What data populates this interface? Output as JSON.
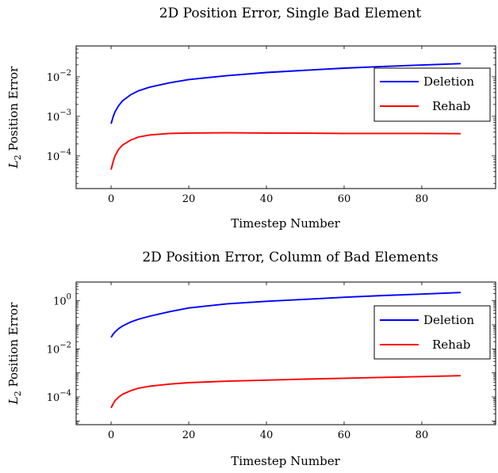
{
  "chart_data": [
    {
      "type": "line",
      "title": "2D Position Error, Single Bad Element",
      "xlabel": "Timestep Number",
      "ylabel": "L2 Position Error",
      "ylabel_subscript": "2",
      "xlim": [
        -9,
        99
      ],
      "ylim": [
        1.5e-05,
        0.06
      ],
      "yscale": "log",
      "legend": "right",
      "xticks": [
        0,
        20,
        40,
        60,
        80
      ],
      "xtick_labels": [
        "0",
        "20",
        "40",
        "60",
        "80"
      ],
      "yticks": [
        0.0001,
        0.001,
        0.01
      ],
      "ytick_labels": [
        {
          "base": "10",
          "exp": "−4"
        },
        {
          "base": "10",
          "exp": "−3"
        },
        {
          "base": "10",
          "exp": "−2"
        }
      ],
      "series": [
        {
          "name": "Deletion",
          "color": "#0000ff",
          "x": [
            0,
            0.5,
            1,
            2,
            3,
            5,
            7,
            10,
            15,
            20,
            30,
            40,
            50,
            60,
            70,
            80,
            90
          ],
          "y": [
            0.00065,
            0.00095,
            0.0013,
            0.0019,
            0.0025,
            0.0035,
            0.0044,
            0.0055,
            0.007,
            0.0085,
            0.0107,
            0.0128,
            0.0146,
            0.0165,
            0.0182,
            0.0198,
            0.0215
          ]
        },
        {
          "name": "Rehab",
          "color": "#ff0000",
          "x": [
            0,
            0.5,
            1,
            2,
            3,
            5,
            7,
            10,
            15,
            20,
            30,
            40,
            50,
            60,
            70,
            80,
            90
          ],
          "y": [
            4.5e-05,
            7e-05,
            0.0001,
            0.00015,
            0.00019,
            0.00025,
            0.0003,
            0.00034,
            0.00037,
            0.00038,
            0.000385,
            0.00038,
            0.000375,
            0.00037,
            0.00037,
            0.00037,
            0.000365
          ]
        }
      ]
    },
    {
      "type": "line",
      "title": "2D Position Error, Column of Bad Elements",
      "xlabel": "Timestep Number",
      "ylabel": "L2 Position Error",
      "ylabel_subscript": "2",
      "xlim": [
        -9,
        99
      ],
      "ylim": [
        7e-06,
        6
      ],
      "yscale": "log",
      "legend": "right",
      "xticks": [
        0,
        20,
        40,
        60,
        80
      ],
      "xtick_labels": [
        "0",
        "20",
        "40",
        "60",
        "80"
      ],
      "yticks": [
        0.0001,
        0.01,
        1
      ],
      "ytick_labels": [
        {
          "base": "10",
          "exp": "−4"
        },
        {
          "base": "10",
          "exp": "−2"
        },
        {
          "base": "10",
          "exp": "0"
        }
      ],
      "series": [
        {
          "name": "Deletion",
          "color": "#0000ff",
          "x": [
            0,
            0.5,
            1,
            2,
            3,
            5,
            7,
            10,
            15,
            20,
            30,
            40,
            50,
            60,
            70,
            80,
            90
          ],
          "y": [
            0.03,
            0.04,
            0.05,
            0.07,
            0.09,
            0.13,
            0.17,
            0.23,
            0.35,
            0.5,
            0.75,
            0.95,
            1.15,
            1.4,
            1.65,
            1.9,
            2.2
          ]
        },
        {
          "name": "Rehab",
          "color": "#ff0000",
          "x": [
            0,
            0.5,
            1,
            2,
            3,
            5,
            7,
            10,
            15,
            20,
            30,
            40,
            50,
            60,
            70,
            80,
            90
          ],
          "y": [
            3.5e-05,
            5e-05,
            7e-05,
            0.0001,
            0.00013,
            0.00018,
            0.00023,
            0.00028,
            0.00034,
            0.00039,
            0.00045,
            0.0005,
            0.00055,
            0.0006,
            0.00065,
            0.0007,
            0.00076
          ]
        }
      ]
    }
  ]
}
